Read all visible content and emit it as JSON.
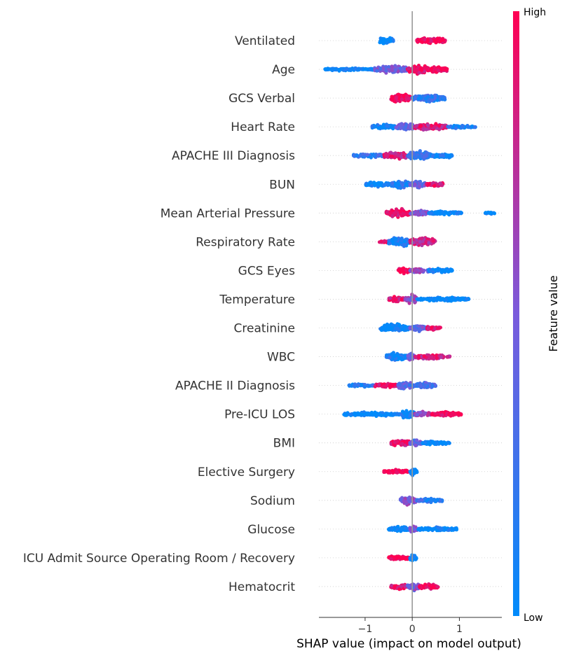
{
  "chart_data": {
    "type": "scatter",
    "subtype": "shap-beeswarm-summary",
    "xlabel": "SHAP value (impact on model output)",
    "xlim": [
      -1.98,
      1.9
    ],
    "x_ticks": [
      -1,
      0,
      1
    ],
    "x_tick_labels": [
      "−1",
      "0",
      "1"
    ],
    "zero_line": 0,
    "row_gridlines": "dotted",
    "colorbar": {
      "label": "Feature value",
      "high_label": "High",
      "low_label": "Low",
      "high_color": "#ff0052",
      "low_color": "#008bfb"
    },
    "features": [
      {
        "name": "Ventilated",
        "x_min": -0.7,
        "x_max": 0.7,
        "segments": [
          [
            -0.7,
            -0.4,
            0.07,
            0.0
          ],
          [
            0.1,
            0.7,
            0.06,
            1.0
          ]
        ]
      },
      {
        "name": "Age",
        "x_min": -1.85,
        "x_max": 0.75,
        "segments": [
          [
            -1.85,
            -0.8,
            0.02,
            0.05
          ],
          [
            -0.8,
            -0.1,
            0.07,
            0.45
          ],
          [
            -0.1,
            0.35,
            0.08,
            0.95
          ],
          [
            0.35,
            0.75,
            0.06,
            1.0
          ]
        ]
      },
      {
        "name": "GCS Verbal",
        "x_min": -0.45,
        "x_max": 0.7,
        "segments": [
          [
            -0.45,
            -0.05,
            0.1,
            1.0
          ],
          [
            0.0,
            0.7,
            0.06,
            0.2
          ]
        ]
      },
      {
        "name": "Heart Rate",
        "x_min": -0.85,
        "x_max": 1.35,
        "segments": [
          [
            -0.85,
            -0.35,
            0.04,
            0.1
          ],
          [
            -0.35,
            0.05,
            0.08,
            0.45
          ],
          [
            0.05,
            0.75,
            0.07,
            0.85
          ],
          [
            0.75,
            1.35,
            0.02,
            0.1
          ]
        ]
      },
      {
        "name": "APACHE III Diagnosis",
        "x_min": -1.25,
        "x_max": 0.85,
        "segments": [
          [
            -1.25,
            -0.6,
            0.03,
            0.2
          ],
          [
            -0.6,
            -0.1,
            0.07,
            0.85
          ],
          [
            -0.1,
            0.4,
            0.09,
            0.2
          ],
          [
            0.4,
            0.85,
            0.04,
            0.1
          ]
        ]
      },
      {
        "name": "BUN",
        "x_min": -1.0,
        "x_max": 0.65,
        "segments": [
          [
            -1.0,
            -0.45,
            0.04,
            0.0
          ],
          [
            -0.45,
            -0.05,
            0.07,
            0.15
          ],
          [
            -0.05,
            0.3,
            0.07,
            0.4
          ],
          [
            0.3,
            0.65,
            0.05,
            0.9
          ]
        ]
      },
      {
        "name": "Mean Arterial Pressure",
        "x_min": -0.55,
        "x_max": 1.75,
        "segments": [
          [
            -0.55,
            -0.05,
            0.08,
            0.95
          ],
          [
            -0.05,
            0.35,
            0.05,
            0.55
          ],
          [
            0.35,
            1.05,
            0.03,
            0.0
          ],
          [
            1.55,
            1.75,
            0.01,
            0.0
          ]
        ]
      },
      {
        "name": "Respiratory Rate",
        "x_min": -0.7,
        "x_max": 0.55,
        "segments": [
          [
            -0.7,
            -0.5,
            0.02,
            0.9
          ],
          [
            -0.5,
            -0.05,
            0.09,
            0.1
          ],
          [
            -0.05,
            0.5,
            0.09,
            0.8
          ]
        ]
      },
      {
        "name": "GCS Eyes",
        "x_min": -0.3,
        "x_max": 0.85,
        "segments": [
          [
            -0.3,
            -0.05,
            0.06,
            1.0
          ],
          [
            -0.05,
            0.4,
            0.04,
            0.55
          ],
          [
            0.35,
            0.85,
            0.04,
            0.05
          ]
        ]
      },
      {
        "name": "Temperature",
        "x_min": -0.5,
        "x_max": 1.2,
        "segments": [
          [
            -0.5,
            -0.15,
            0.05,
            0.9
          ],
          [
            -0.15,
            0.1,
            0.08,
            0.55
          ],
          [
            0.1,
            1.2,
            0.03,
            0.0
          ]
        ]
      },
      {
        "name": "Creatinine",
        "x_min": -0.7,
        "x_max": 0.6,
        "segments": [
          [
            -0.7,
            -0.05,
            0.08,
            0.0
          ],
          [
            -0.05,
            0.3,
            0.06,
            0.4
          ],
          [
            0.3,
            0.6,
            0.04,
            0.9
          ]
        ]
      },
      {
        "name": "WBC",
        "x_min": -0.55,
        "x_max": 0.8,
        "segments": [
          [
            -0.55,
            -0.1,
            0.08,
            0.1
          ],
          [
            -0.1,
            0.05,
            0.07,
            0.5
          ],
          [
            0.05,
            0.8,
            0.04,
            0.85
          ]
        ]
      },
      {
        "name": "APACHE II Diagnosis",
        "x_min": -1.35,
        "x_max": 0.5,
        "segments": [
          [
            -1.35,
            -0.8,
            0.02,
            0.1
          ],
          [
            -0.8,
            -0.3,
            0.04,
            0.95
          ],
          [
            -0.3,
            0.05,
            0.07,
            0.35
          ],
          [
            0.05,
            0.5,
            0.06,
            0.3
          ]
        ]
      },
      {
        "name": "Pre-ICU LOS",
        "x_min": -1.45,
        "x_max": 1.05,
        "segments": [
          [
            -1.45,
            -0.25,
            0.03,
            0.0
          ],
          [
            -0.25,
            0.05,
            0.09,
            0.05
          ],
          [
            0.05,
            0.4,
            0.04,
            0.6
          ],
          [
            0.4,
            1.05,
            0.04,
            1.0
          ]
        ]
      },
      {
        "name": "BMI",
        "x_min": -0.45,
        "x_max": 0.8,
        "segments": [
          [
            -0.45,
            -0.05,
            0.07,
            0.9
          ],
          [
            -0.05,
            0.2,
            0.06,
            0.4
          ],
          [
            0.2,
            0.8,
            0.04,
            0.0
          ]
        ]
      },
      {
        "name": "Elective Surgery",
        "x_min": -0.6,
        "x_max": 0.1,
        "segments": [
          [
            -0.6,
            -0.05,
            0.03,
            1.0
          ],
          [
            -0.05,
            0.1,
            0.07,
            0.0
          ]
        ]
      },
      {
        "name": "Sodium",
        "x_min": -0.25,
        "x_max": 0.65,
        "segments": [
          [
            -0.25,
            0.1,
            0.08,
            0.55
          ],
          [
            0.1,
            0.65,
            0.04,
            0.2
          ]
        ]
      },
      {
        "name": "Glucose",
        "x_min": -0.5,
        "x_max": 0.95,
        "segments": [
          [
            -0.5,
            -0.05,
            0.05,
            0.0
          ],
          [
            -0.05,
            0.1,
            0.08,
            0.6
          ],
          [
            0.1,
            0.95,
            0.03,
            0.0
          ]
        ]
      },
      {
        "name": "ICU Admit Source Operating Room / Recovery",
        "x_min": -0.5,
        "x_max": 0.1,
        "segments": [
          [
            -0.5,
            -0.05,
            0.04,
            1.0
          ],
          [
            -0.05,
            0.1,
            0.07,
            0.0
          ]
        ]
      },
      {
        "name": "Hematocrit",
        "x_min": -0.45,
        "x_max": 0.55,
        "segments": [
          [
            -0.45,
            -0.1,
            0.05,
            0.9
          ],
          [
            -0.1,
            0.15,
            0.08,
            0.5
          ],
          [
            0.15,
            0.55,
            0.05,
            0.95
          ]
        ]
      }
    ]
  }
}
